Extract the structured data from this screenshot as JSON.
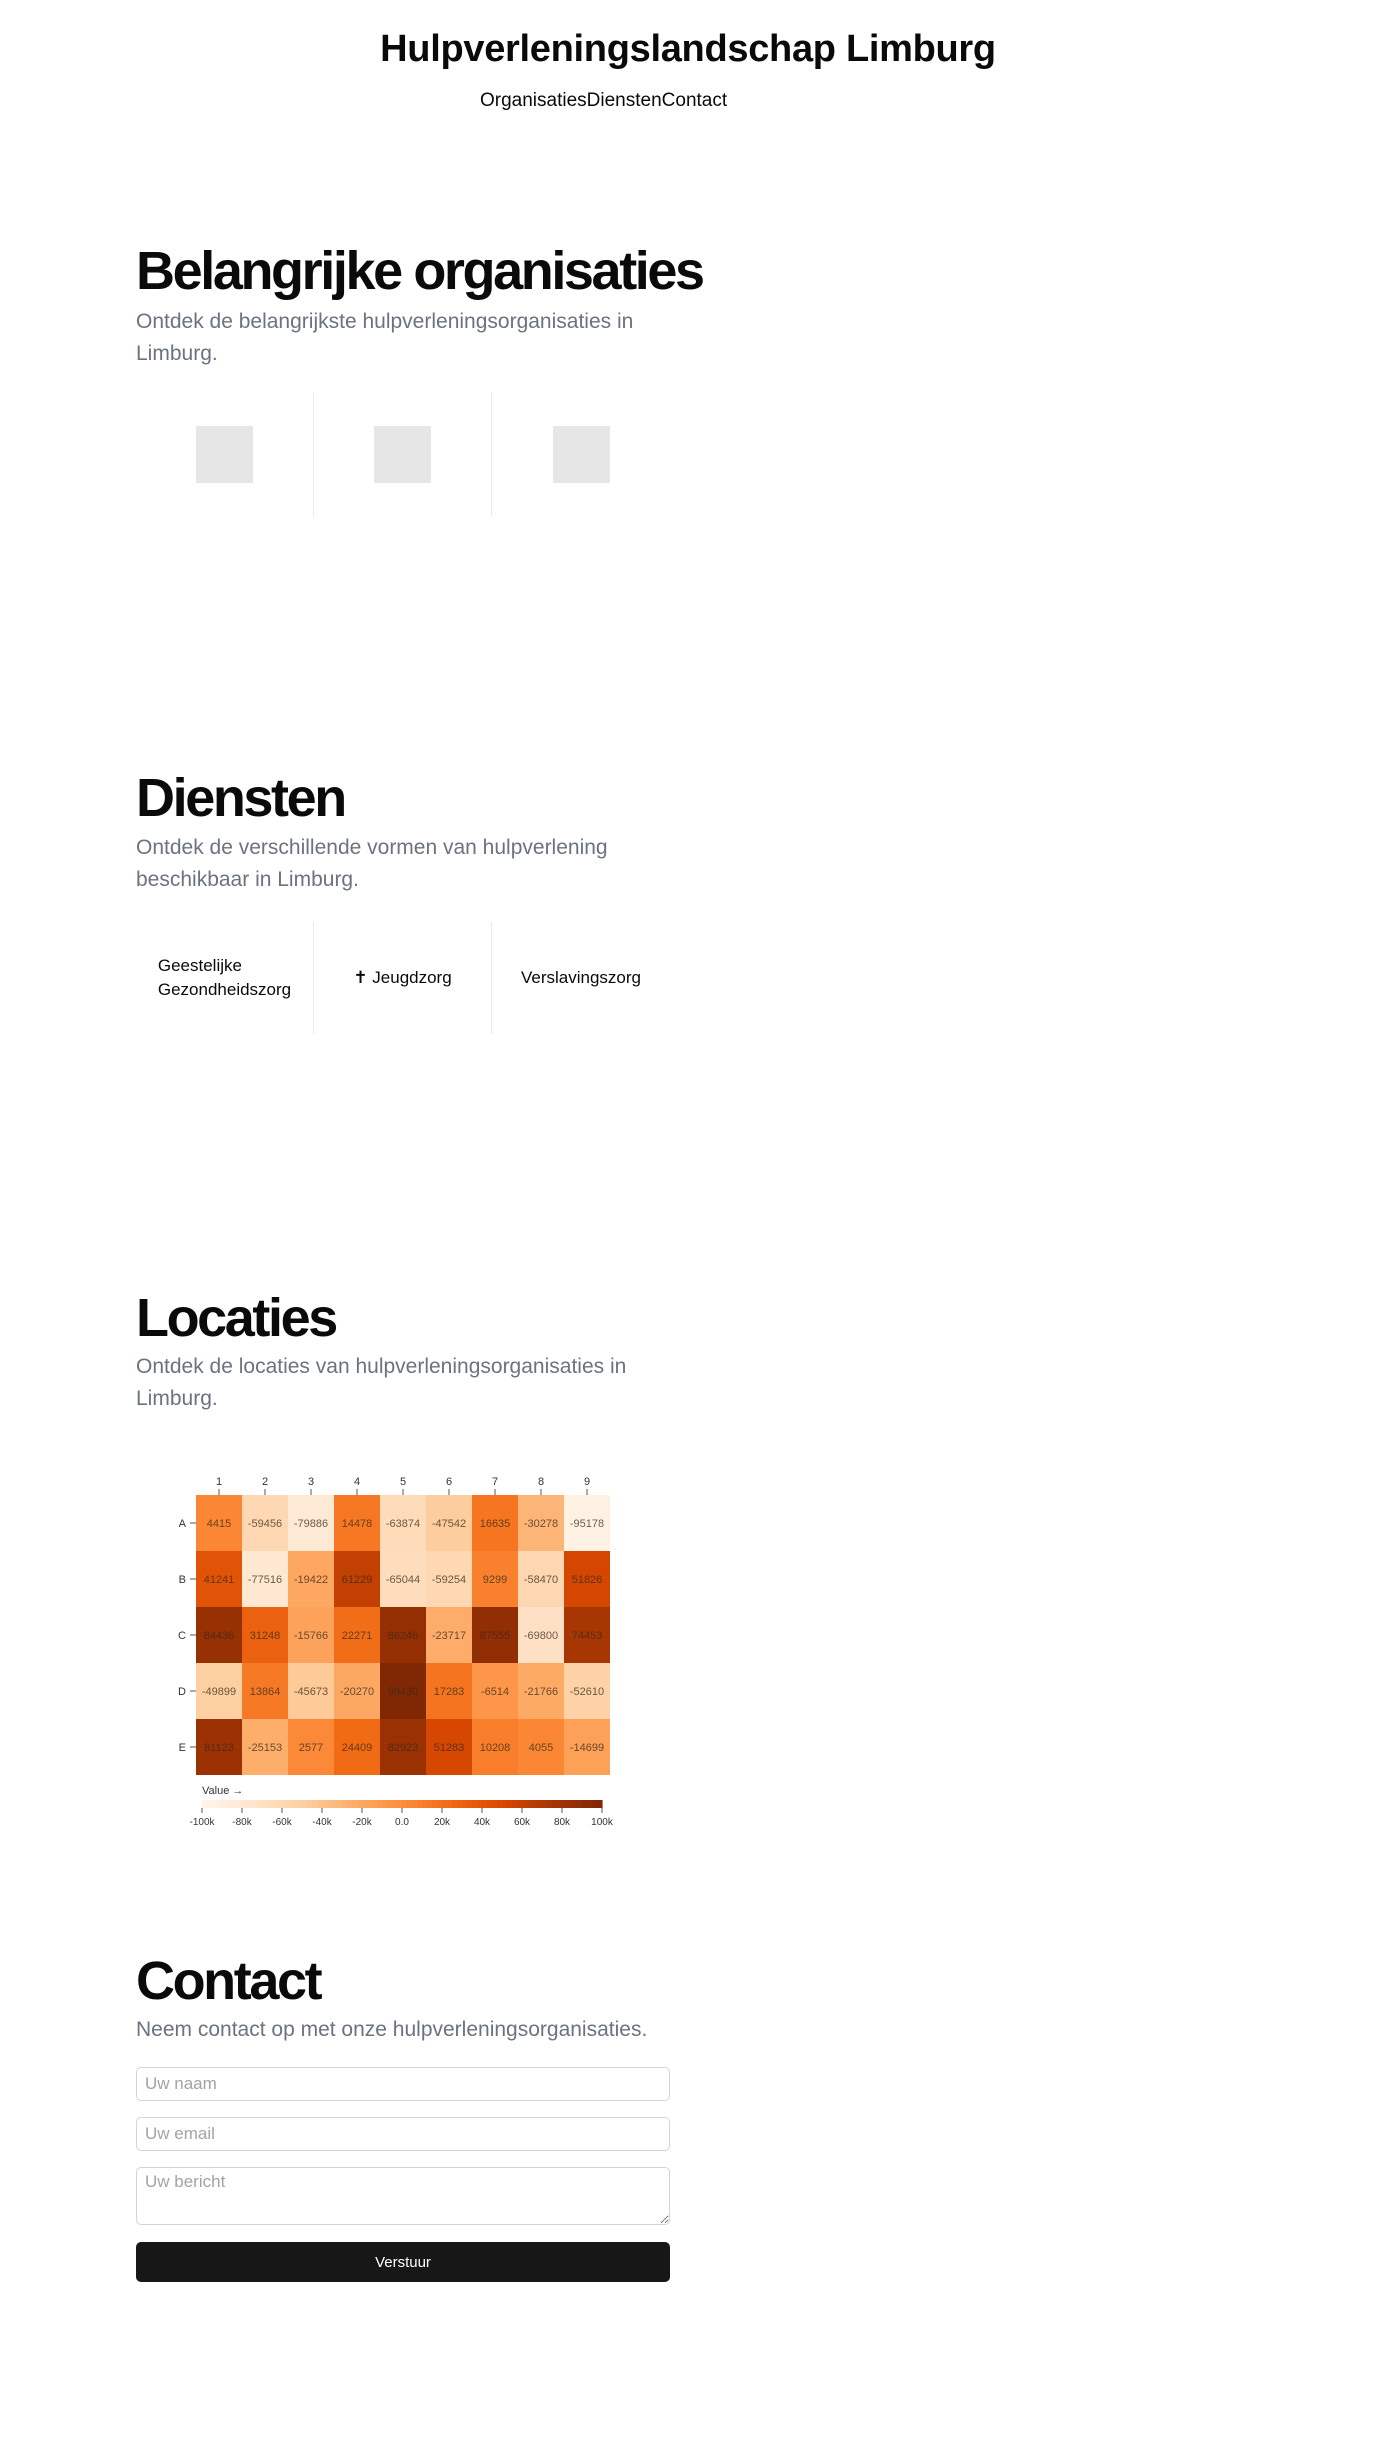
{
  "header": {
    "title": "Hulpverleningslandschap Limburg",
    "nav": [
      "Organisaties",
      "Diensten",
      "Contact"
    ]
  },
  "organisaties": {
    "title": "Belangrijke organisaties",
    "subtitle": "Ontdek de belangrijkste hulpverleningsorganisaties in Limburg."
  },
  "diensten": {
    "title": "Diensten",
    "subtitle": "Ontdek de verschillende vormen van hulpverlening beschikbaar in Limburg.",
    "items": [
      {
        "line1": "Geestelijke",
        "line2": "Gezondheidszorg"
      },
      {
        "line1": "✝ Jeugdzorg",
        "line2": ""
      },
      {
        "line1": "Verslavingszorg",
        "line2": ""
      }
    ]
  },
  "locaties": {
    "title": "Locaties",
    "subtitle": "Ontdek de locaties van hulpverleningsorganisaties in Limburg."
  },
  "chart_data": {
    "type": "heatmap",
    "columns": [
      "1",
      "2",
      "3",
      "4",
      "5",
      "6",
      "7",
      "8",
      "9"
    ],
    "rows": [
      "A",
      "B",
      "C",
      "D",
      "E"
    ],
    "values": [
      [
        4415,
        -59456,
        -79886,
        14478,
        -63874,
        -47542,
        16635,
        -30278,
        -95178
      ],
      [
        41241,
        -77516,
        -19422,
        61229,
        -65044,
        -59254,
        9299,
        -58470,
        51826
      ],
      [
        84436,
        31248,
        -15766,
        22271,
        86246,
        -23717,
        87555,
        -69800,
        74453
      ],
      [
        -49899,
        13864,
        -45673,
        -20270,
        99430,
        17283,
        -6514,
        -21766,
        -52610
      ],
      [
        81123,
        -25153,
        2577,
        24409,
        82923,
        51283,
        10208,
        4055,
        -14699
      ]
    ],
    "legend_title": "Value →",
    "legend_ticks": [
      "-100k",
      "-80k",
      "-60k",
      "-40k",
      "-20k",
      "0.0",
      "20k",
      "40k",
      "60k",
      "80k",
      "100k"
    ],
    "domain": [
      -100000,
      100000
    ],
    "color_low": "#fff5eb",
    "color_high": "#7f2704"
  },
  "contact": {
    "title": "Contact",
    "subtitle": "Neem contact op met onze hulpverleningsorganisaties.",
    "name_placeholder": "Uw naam",
    "email_placeholder": "Uw email",
    "message_placeholder": "Uw bericht",
    "submit_label": "Verstuur"
  }
}
